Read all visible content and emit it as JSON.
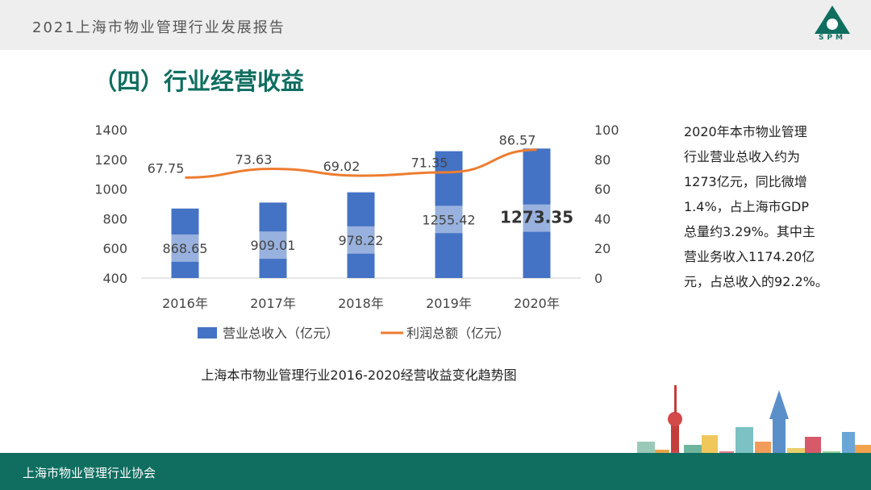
{
  "header": {
    "report_title": "2021上海市物业管理行业发展报告",
    "logo_text": "SPM"
  },
  "section_title": "（四）行业经营收益",
  "chart_data": {
    "type": "bar+line",
    "categories": [
      "2016年",
      "2017年",
      "2018年",
      "2019年",
      "2020年"
    ],
    "series": [
      {
        "name": "营业总收入（亿元）",
        "type": "bar",
        "axis": "left",
        "values": [
          868.65,
          909.01,
          978.22,
          1255.42,
          1273.35
        ],
        "labels": [
          "868.65",
          "909.01",
          "978.22",
          "1255.42",
          "1273.35"
        ],
        "color": "#4472c4"
      },
      {
        "name": "利润总额（亿元）",
        "type": "line",
        "axis": "right",
        "values": [
          67.75,
          73.63,
          69.02,
          71.35,
          86.57
        ],
        "labels": [
          "67.75",
          "73.63",
          "69.02",
          "71.35",
          "86.57"
        ],
        "color": "#ed7d31"
      }
    ],
    "y_left": {
      "min": 400,
      "max": 1400,
      "ticks": [
        "1400",
        "1200",
        "1000",
        "800",
        "600",
        "400"
      ]
    },
    "y_right": {
      "min": 0,
      "max": 100,
      "ticks": [
        "100",
        "80",
        "60",
        "40",
        "20",
        "0"
      ]
    },
    "legend_position": "bottom",
    "grid": false,
    "highlight_label_index": 4
  },
  "caption": "上海本市物业管理行业2016-2020经营收益变化趋势图",
  "description_lines": [
    "2020年本市物业管理",
    "行业营业总收入约为",
    "1273亿元，同比微增",
    "1.4%，占上海市GDP",
    "总量约3.29%。其中主",
    "营业务收入1174.20亿",
    "元，占总收入的92.2%。"
  ],
  "footer": {
    "org": "上海市物业管理行业协会"
  },
  "colors": {
    "brand_green": "#0f6e60",
    "bar_blue": "#4472c4",
    "line_orange": "#ed7d31"
  }
}
